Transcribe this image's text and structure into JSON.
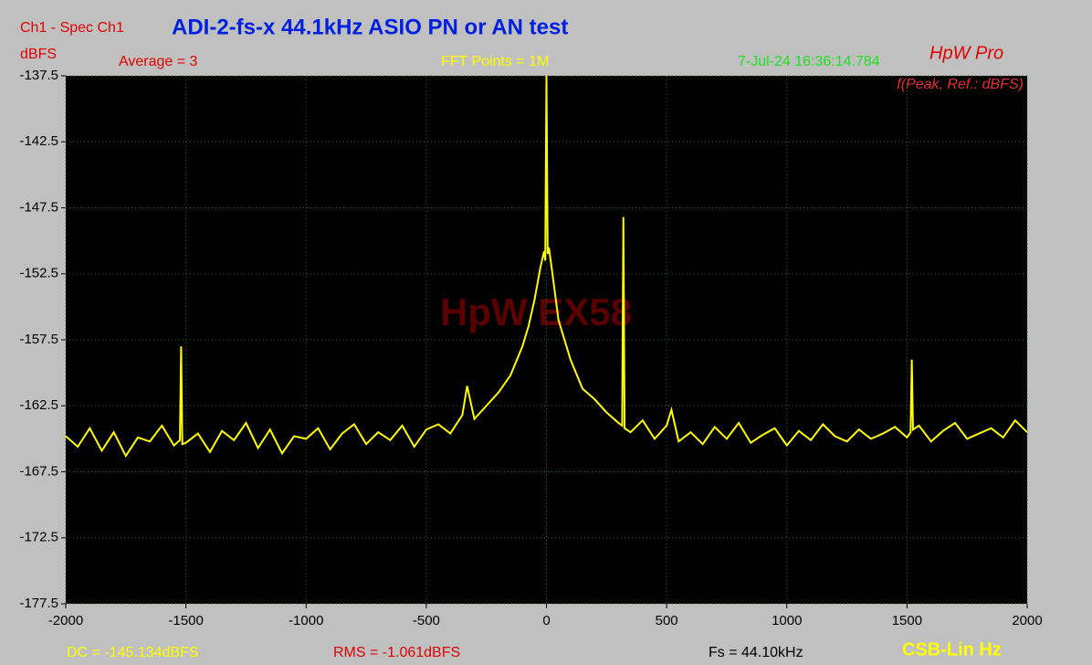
{
  "chart_data": {
    "type": "line",
    "title": "ADI-2-fs-x 44.1kHz ASIO PN or AN test",
    "channel_label": "Ch1 - Spec Ch1",
    "y_axis_label": "dBFS",
    "average_label": "Average = 3",
    "fft_label": "FFT Points = 1M",
    "timestamp": "7-Jul-24 16:36:14.784",
    "brand": "HpW Pro",
    "mode_label": "f(Peak, Ref.: dBFS)",
    "watermark": "HpW EX58",
    "dc_label": "DC = -145.134dBFS",
    "rms_label": "RMS = -1.061dBFS",
    "fs_label": "Fs = 44.10kHz",
    "x_axis_label": "CSB-Lin Hz",
    "xlim": [
      -2000,
      2000
    ],
    "xticks": [
      -2000,
      -1500,
      -1000,
      -500,
      0,
      500,
      1000,
      1500,
      2000
    ],
    "ylim": [
      -177.5,
      -137.5
    ],
    "yticks": [
      -137.5,
      -142.5,
      -147.5,
      -152.5,
      -157.5,
      -162.5,
      -167.5,
      -172.5,
      -177.5
    ],
    "grid": true,
    "series": [
      {
        "name": "Ch1",
        "color": "#ffff00",
        "x": [
          -2000,
          -1950,
          -1900,
          -1850,
          -1800,
          -1750,
          -1700,
          -1650,
          -1600,
          -1550,
          -1525,
          -1520,
          -1515,
          -1500,
          -1450,
          -1400,
          -1350,
          -1300,
          -1250,
          -1200,
          -1150,
          -1100,
          -1050,
          -1000,
          -950,
          -900,
          -850,
          -800,
          -750,
          -700,
          -650,
          -600,
          -550,
          -500,
          -450,
          -400,
          -350,
          -330,
          -300,
          -250,
          -200,
          -150,
          -100,
          -75,
          -50,
          -25,
          -10,
          -5,
          0,
          5,
          10,
          25,
          50,
          75,
          100,
          150,
          200,
          250,
          300,
          315,
          320,
          325,
          350,
          400,
          450,
          500,
          520,
          550,
          600,
          650,
          700,
          750,
          800,
          850,
          900,
          950,
          1000,
          1050,
          1100,
          1150,
          1200,
          1250,
          1300,
          1350,
          1400,
          1450,
          1500,
          1515,
          1520,
          1525,
          1550,
          1600,
          1650,
          1700,
          1750,
          1800,
          1850,
          1900,
          1950,
          2000
        ],
        "values": [
          -164.8,
          -165.6,
          -164.2,
          -165.9,
          -164.5,
          -166.3,
          -164.9,
          -165.2,
          -164.0,
          -165.5,
          -165.1,
          -158.0,
          -165.4,
          -165.3,
          -164.6,
          -166.0,
          -164.4,
          -165.1,
          -163.8,
          -165.7,
          -164.3,
          -166.1,
          -164.8,
          -165.0,
          -164.2,
          -165.8,
          -164.6,
          -163.9,
          -165.4,
          -164.5,
          -165.1,
          -164.0,
          -165.6,
          -164.3,
          -163.9,
          -164.6,
          -163.2,
          -161.0,
          -163.5,
          -162.5,
          -161.5,
          -160.2,
          -158.0,
          -156.5,
          -154.5,
          -152.0,
          -150.8,
          -151.5,
          -137.5,
          -151.0,
          -150.5,
          -152.5,
          -156.0,
          -157.5,
          -159.0,
          -161.2,
          -162.0,
          -163.0,
          -163.8,
          -164.0,
          -148.2,
          -164.2,
          -164.5,
          -163.6,
          -165.0,
          -164.0,
          -162.8,
          -165.2,
          -164.5,
          -165.4,
          -164.1,
          -165.0,
          -163.8,
          -165.3,
          -164.7,
          -164.2,
          -165.5,
          -164.4,
          -165.1,
          -163.9,
          -164.8,
          -165.2,
          -164.3,
          -165.0,
          -164.6,
          -164.1,
          -164.9,
          -164.5,
          -159.0,
          -164.3,
          -164.0,
          -165.2,
          -164.4,
          -163.8,
          -165.0,
          -164.6,
          -164.2,
          -164.9,
          -163.6,
          -164.5
        ]
      }
    ]
  }
}
